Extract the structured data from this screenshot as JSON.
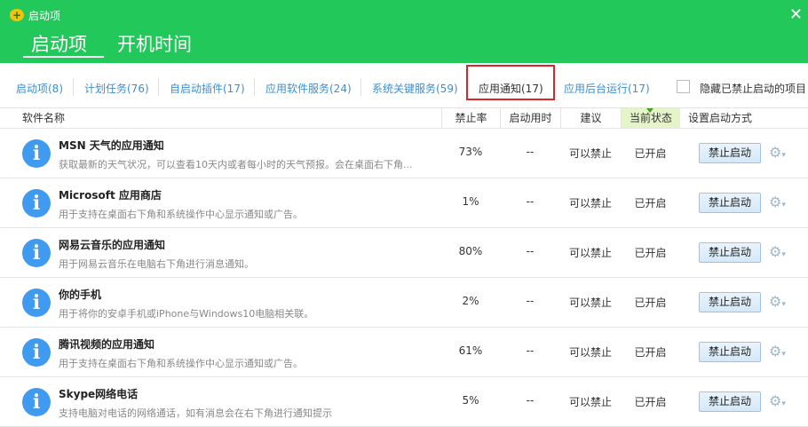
{
  "window": {
    "title": "启动项",
    "close": "✕"
  },
  "main_tabs": [
    "启动项",
    "开机时间"
  ],
  "sub_tabs": [
    "启动项(8)",
    "计划任务(76)",
    "自启动插件(17)",
    "应用软件服务(24)",
    "系统关键服务(59)",
    "应用通知(17)",
    "应用后台运行(17)"
  ],
  "active_sub_tab": "应用通知(17)",
  "hide_disabled": {
    "label": "隐藏已禁止启动的项目",
    "checked": false
  },
  "columns": [
    "软件名称",
    "禁止率",
    "启动用时",
    "建议",
    "当前状态",
    "设置启动方式"
  ],
  "sorted_column": "当前状态",
  "rows": [
    {
      "name": "MSN 天气的应用通知",
      "desc": "获取最新的天气状况，可以查看10天内或者每小时的天气预报。会在桌面右下角...",
      "rate": "73%",
      "time": "--",
      "advice": "可以禁止",
      "state": "已开启",
      "action": "禁止启动"
    },
    {
      "name": "Microsoft 应用商店",
      "desc": "用于支持在桌面右下角和系统操作中心显示通知或广告。",
      "rate": "1%",
      "time": "--",
      "advice": "可以禁止",
      "state": "已开启",
      "action": "禁止启动"
    },
    {
      "name": "网易云音乐的应用通知",
      "desc": "用于网易云音乐在电脑右下角进行消息通知。",
      "rate": "80%",
      "time": "--",
      "advice": "可以禁止",
      "state": "已开启",
      "action": "禁止启动"
    },
    {
      "name": "你的手机",
      "desc": "用于将你的安卓手机或iPhone与Windows10电脑相关联。",
      "rate": "2%",
      "time": "--",
      "advice": "可以禁止",
      "state": "已开启",
      "action": "禁止启动"
    },
    {
      "name": "腾讯视频的应用通知",
      "desc": "用于支持在桌面右下角和系统操作中心显示通知或广告。",
      "rate": "61%",
      "time": "--",
      "advice": "可以禁止",
      "state": "已开启",
      "action": "禁止启动"
    },
    {
      "name": "Skype网络电话",
      "desc": "支持电脑对电话的网络通话，如有消息会在右下角进行通知提示",
      "rate": "5%",
      "time": "--",
      "advice": "可以禁止",
      "state": "已开启",
      "action": "禁止启动"
    }
  ],
  "colors": {
    "header_green": "#22c95a",
    "link_blue": "#3a8fd4",
    "info_icon": "#3f9af0",
    "highlight_red": "#d9252b"
  }
}
